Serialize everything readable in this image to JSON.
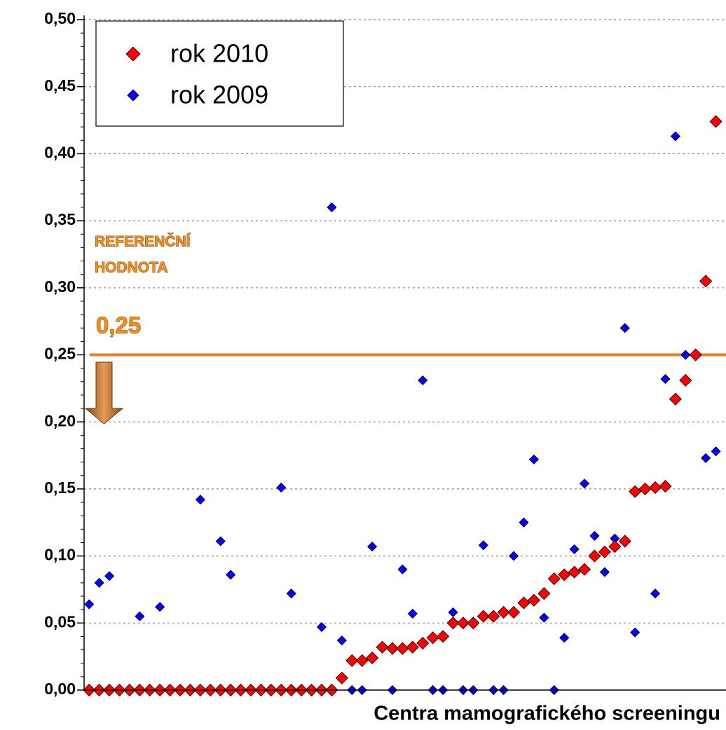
{
  "chart_data": {
    "type": "scatter",
    "x_label": "Centra mamografického screeningu",
    "x": [
      1,
      2,
      3,
      4,
      5,
      6,
      7,
      8,
      9,
      10,
      11,
      12,
      13,
      14,
      15,
      16,
      17,
      18,
      19,
      20,
      21,
      22,
      23,
      24,
      25,
      26,
      27,
      28,
      29,
      30,
      31,
      32,
      33,
      34,
      35,
      36,
      37,
      38,
      39,
      40,
      41,
      42,
      43,
      44,
      45,
      46,
      47,
      48,
      49,
      50,
      51,
      52,
      53,
      54,
      55,
      56,
      57,
      58,
      59,
      60,
      61,
      62,
      63
    ],
    "xlim": [
      0.5,
      64
    ],
    "ylim": [
      0,
      0.5
    ],
    "yticks": [
      {
        "value": 0,
        "label": "0,00"
      },
      {
        "value": 0.05,
        "label": "0,05"
      },
      {
        "value": 0.1,
        "label": "0,10"
      },
      {
        "value": 0.15,
        "label": "0,15"
      },
      {
        "value": 0.2,
        "label": "0,20"
      },
      {
        "value": 0.25,
        "label": "0,25"
      },
      {
        "value": 0.3,
        "label": "0,30"
      },
      {
        "value": 0.35,
        "label": "0,35"
      },
      {
        "value": 0.4,
        "label": "0,40"
      },
      {
        "value": 0.45,
        "label": "0,45"
      },
      {
        "value": 0.5,
        "label": "0,50"
      }
    ],
    "grid": true,
    "legend": "top-left",
    "series": [
      {
        "name": "rok 2010",
        "color": "#ff0000",
        "values": [
          0,
          0,
          0,
          0,
          0,
          0,
          0,
          0,
          0,
          0,
          0,
          0,
          0,
          0,
          0,
          0,
          0,
          0,
          0,
          0,
          0,
          0,
          0,
          0,
          0,
          0.009,
          0.022,
          0.022,
          0.024,
          0.032,
          0.031,
          0.031,
          0.032,
          0.035,
          0.039,
          0.04,
          0.05,
          0.05,
          0.05,
          0.055,
          0.055,
          0.058,
          0.058,
          0.065,
          0.067,
          0.072,
          0.083,
          0.086,
          0.088,
          0.09,
          0.1,
          0.103,
          0.107,
          0.111,
          0.148,
          0.15,
          0.151,
          0.152,
          0.217,
          0.231,
          0.25,
          0.305,
          0.424
        ]
      },
      {
        "name": "rok 2009",
        "color": "#0000ff",
        "values": [
          0.064,
          0.08,
          0.085,
          null,
          null,
          0.055,
          null,
          0.062,
          null,
          null,
          null,
          0.142,
          null,
          0.111,
          0.086,
          null,
          null,
          null,
          null,
          0.151,
          0.072,
          null,
          null,
          0.047,
          0.36,
          0.037,
          0,
          0,
          0.107,
          null,
          0,
          0.09,
          0.057,
          0.231,
          0,
          0,
          0.058,
          0,
          0,
          0.108,
          0,
          0,
          0.1,
          0.125,
          0.172,
          0.054,
          0,
          0.039,
          0.105,
          0.154,
          0.115,
          0.088,
          0.113,
          0.27,
          0.043,
          null,
          0.072,
          0.232,
          0.413,
          0.25,
          null,
          0.173,
          0.178
        ]
      }
    ],
    "reference_line": {
      "value": 0.25,
      "color": "#ee7d22"
    },
    "annotations": [
      "REFERENČNÍ",
      "HODNOTA",
      "0,25"
    ]
  }
}
